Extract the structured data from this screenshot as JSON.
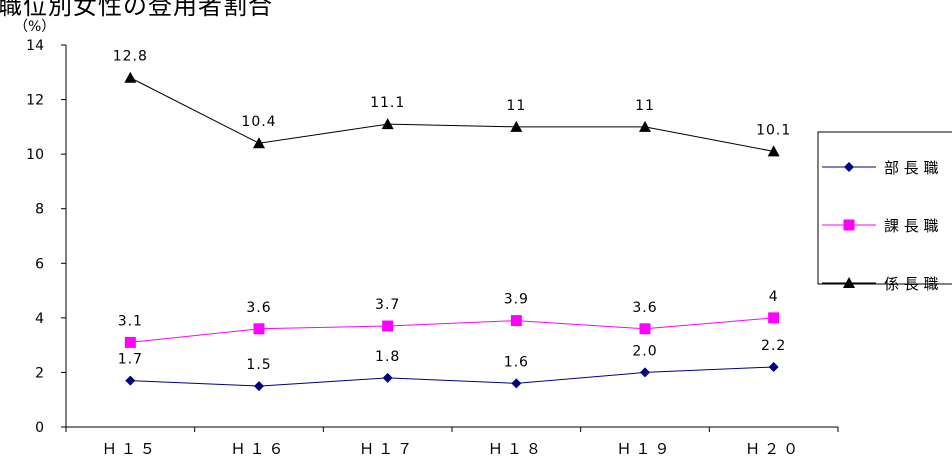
{
  "chart_data": {
    "type": "line",
    "title": "職位別女性の登用者割合",
    "unit_label": "（%）",
    "categories": [
      "H15",
      "H16",
      "H17",
      "H18",
      "H19",
      "H20"
    ],
    "category_display": [
      "Ｈ１５",
      "Ｈ１６",
      "Ｈ１７",
      "Ｈ１８",
      "Ｈ１９",
      "Ｈ２０"
    ],
    "ylim": [
      0,
      14
    ],
    "yticks": [
      0,
      2,
      4,
      6,
      8,
      10,
      12,
      14
    ],
    "grid": false,
    "legend_position": "right",
    "series": [
      {
        "name": "部長職",
        "name_display": "部 長 職",
        "color": "#000080",
        "marker": "diamond",
        "values": [
          1.7,
          1.5,
          1.8,
          1.6,
          2.0,
          2.2
        ],
        "labels": [
          "1.7",
          "1.5",
          "1.8",
          "1.6",
          "2.0",
          "2.2"
        ]
      },
      {
        "name": "課長職",
        "name_display": "課 長 職",
        "color": "#ff00ff",
        "marker": "square",
        "values": [
          3.1,
          3.6,
          3.7,
          3.9,
          3.6,
          4
        ],
        "labels": [
          "3.1",
          "3.6",
          "3.7",
          "3.9",
          "3.6",
          "4"
        ]
      },
      {
        "name": "係長職",
        "name_display": "係 長 職",
        "color": "#000000",
        "marker": "triangle",
        "values": [
          12.8,
          10.4,
          11.1,
          11,
          11,
          10.1
        ],
        "labels": [
          "12.8",
          "10.4",
          "11.1",
          "11",
          "11",
          "10.1"
        ]
      }
    ]
  }
}
